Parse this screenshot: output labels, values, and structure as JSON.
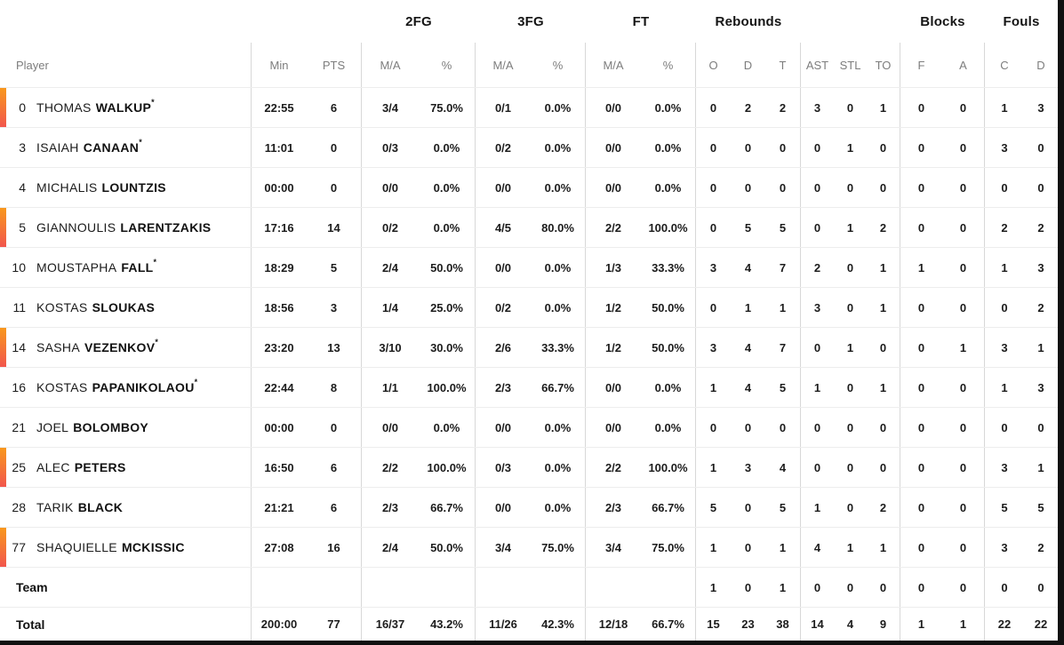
{
  "table": {
    "group_headers": [
      "2FG",
      "3FG",
      "FT",
      "Rebounds",
      "Blocks",
      "Fouls"
    ],
    "sub": {
      "player": "Player",
      "min": "Min",
      "pts": "PTS",
      "ma": "M/A",
      "pct": "%",
      "o": "O",
      "d": "D",
      "t": "T",
      "ast": "AST",
      "stl": "STL",
      "to": "TO",
      "f": "F",
      "a": "A",
      "c": "C"
    },
    "starter_mark": "*",
    "players": [
      {
        "number": "0",
        "first": "THOMAS",
        "last": "WALKUP",
        "starter": true,
        "live": true,
        "min": "22:55",
        "pts": "6",
        "fg2": "3/4",
        "fg2p": "75.0%",
        "fg3": "0/1",
        "fg3p": "0.0%",
        "ft": "0/0",
        "ftp": "0.0%",
        "ro": "0",
        "rd": "2",
        "rt": "2",
        "ast": "3",
        "stl": "0",
        "to": "1",
        "bf": "0",
        "ba": "0",
        "fc": "1",
        "fd": "3"
      },
      {
        "number": "3",
        "first": "ISAIAH",
        "last": "CANAAN",
        "starter": true,
        "live": false,
        "min": "11:01",
        "pts": "0",
        "fg2": "0/3",
        "fg2p": "0.0%",
        "fg3": "0/2",
        "fg3p": "0.0%",
        "ft": "0/0",
        "ftp": "0.0%",
        "ro": "0",
        "rd": "0",
        "rt": "0",
        "ast": "0",
        "stl": "1",
        "to": "0",
        "bf": "0",
        "ba": "0",
        "fc": "3",
        "fd": "0"
      },
      {
        "number": "4",
        "first": "MICHALIS",
        "last": "LOUNTZIS",
        "starter": false,
        "live": false,
        "min": "00:00",
        "pts": "0",
        "fg2": "0/0",
        "fg2p": "0.0%",
        "fg3": "0/0",
        "fg3p": "0.0%",
        "ft": "0/0",
        "ftp": "0.0%",
        "ro": "0",
        "rd": "0",
        "rt": "0",
        "ast": "0",
        "stl": "0",
        "to": "0",
        "bf": "0",
        "ba": "0",
        "fc": "0",
        "fd": "0"
      },
      {
        "number": "5",
        "first": "GIANNOULIS",
        "last": "LARENTZAKIS",
        "starter": false,
        "live": true,
        "min": "17:16",
        "pts": "14",
        "fg2": "0/2",
        "fg2p": "0.0%",
        "fg3": "4/5",
        "fg3p": "80.0%",
        "ft": "2/2",
        "ftp": "100.0%",
        "ro": "0",
        "rd": "5",
        "rt": "5",
        "ast": "0",
        "stl": "1",
        "to": "2",
        "bf": "0",
        "ba": "0",
        "fc": "2",
        "fd": "2"
      },
      {
        "number": "10",
        "first": "MOUSTAPHA",
        "last": "FALL",
        "starter": true,
        "live": false,
        "min": "18:29",
        "pts": "5",
        "fg2": "2/4",
        "fg2p": "50.0%",
        "fg3": "0/0",
        "fg3p": "0.0%",
        "ft": "1/3",
        "ftp": "33.3%",
        "ro": "3",
        "rd": "4",
        "rt": "7",
        "ast": "2",
        "stl": "0",
        "to": "1",
        "bf": "1",
        "ba": "0",
        "fc": "1",
        "fd": "3"
      },
      {
        "number": "11",
        "first": "KOSTAS",
        "last": "SLOUKAS",
        "starter": false,
        "live": false,
        "min": "18:56",
        "pts": "3",
        "fg2": "1/4",
        "fg2p": "25.0%",
        "fg3": "0/2",
        "fg3p": "0.0%",
        "ft": "1/2",
        "ftp": "50.0%",
        "ro": "0",
        "rd": "1",
        "rt": "1",
        "ast": "3",
        "stl": "0",
        "to": "1",
        "bf": "0",
        "ba": "0",
        "fc": "0",
        "fd": "2"
      },
      {
        "number": "14",
        "first": "SASHA",
        "last": "VEZENKOV",
        "starter": true,
        "live": true,
        "min": "23:20",
        "pts": "13",
        "fg2": "3/10",
        "fg2p": "30.0%",
        "fg3": "2/6",
        "fg3p": "33.3%",
        "ft": "1/2",
        "ftp": "50.0%",
        "ro": "3",
        "rd": "4",
        "rt": "7",
        "ast": "0",
        "stl": "1",
        "to": "0",
        "bf": "0",
        "ba": "1",
        "fc": "3",
        "fd": "1"
      },
      {
        "number": "16",
        "first": "KOSTAS",
        "last": "PAPANIKOLAOU",
        "starter": true,
        "live": false,
        "min": "22:44",
        "pts": "8",
        "fg2": "1/1",
        "fg2p": "100.0%",
        "fg3": "2/3",
        "fg3p": "66.7%",
        "ft": "0/0",
        "ftp": "0.0%",
        "ro": "1",
        "rd": "4",
        "rt": "5",
        "ast": "1",
        "stl": "0",
        "to": "1",
        "bf": "0",
        "ba": "0",
        "fc": "1",
        "fd": "3"
      },
      {
        "number": "21",
        "first": "JOEL",
        "last": "BOLOMBOY",
        "starter": false,
        "live": false,
        "min": "00:00",
        "pts": "0",
        "fg2": "0/0",
        "fg2p": "0.0%",
        "fg3": "0/0",
        "fg3p": "0.0%",
        "ft": "0/0",
        "ftp": "0.0%",
        "ro": "0",
        "rd": "0",
        "rt": "0",
        "ast": "0",
        "stl": "0",
        "to": "0",
        "bf": "0",
        "ba": "0",
        "fc": "0",
        "fd": "0"
      },
      {
        "number": "25",
        "first": "ALEC",
        "last": "PETERS",
        "starter": false,
        "live": true,
        "min": "16:50",
        "pts": "6",
        "fg2": "2/2",
        "fg2p": "100.0%",
        "fg3": "0/3",
        "fg3p": "0.0%",
        "ft": "2/2",
        "ftp": "100.0%",
        "ro": "1",
        "rd": "3",
        "rt": "4",
        "ast": "0",
        "stl": "0",
        "to": "0",
        "bf": "0",
        "ba": "0",
        "fc": "3",
        "fd": "1"
      },
      {
        "number": "28",
        "first": "TARIK",
        "last": "BLACK",
        "starter": false,
        "live": false,
        "min": "21:21",
        "pts": "6",
        "fg2": "2/3",
        "fg2p": "66.7%",
        "fg3": "0/0",
        "fg3p": "0.0%",
        "ft": "2/3",
        "ftp": "66.7%",
        "ro": "5",
        "rd": "0",
        "rt": "5",
        "ast": "1",
        "stl": "0",
        "to": "2",
        "bf": "0",
        "ba": "0",
        "fc": "5",
        "fd": "5"
      },
      {
        "number": "77",
        "first": "SHAQUIELLE",
        "last": "MCKISSIC",
        "starter": false,
        "live": true,
        "min": "27:08",
        "pts": "16",
        "fg2": "2/4",
        "fg2p": "50.0%",
        "fg3": "3/4",
        "fg3p": "75.0%",
        "ft": "3/4",
        "ftp": "75.0%",
        "ro": "1",
        "rd": "0",
        "rt": "1",
        "ast": "4",
        "stl": "1",
        "to": "1",
        "bf": "0",
        "ba": "0",
        "fc": "3",
        "fd": "2"
      }
    ],
    "team": {
      "label": "Team",
      "ro": "1",
      "rd": "0",
      "rt": "1",
      "ast": "0",
      "stl": "0",
      "to": "0",
      "bf": "0",
      "ba": "0",
      "fc": "0",
      "fd": "0"
    },
    "total": {
      "label": "Total",
      "min": "200:00",
      "pts": "77",
      "fg2": "16/37",
      "fg2p": "43.2%",
      "fg3": "11/26",
      "fg3p": "42.3%",
      "ft": "12/18",
      "ftp": "66.7%",
      "ro": "15",
      "rd": "23",
      "rt": "38",
      "ast": "14",
      "stl": "4",
      "to": "9",
      "bf": "1",
      "ba": "1",
      "fc": "22",
      "fd": "22"
    }
  },
  "colors": {
    "on_court_top": "#F8981D",
    "on_court_bottom": "#F2564D",
    "frame": "#101010",
    "divider": "#D8D8D8",
    "row_line": "#EDEDED"
  }
}
